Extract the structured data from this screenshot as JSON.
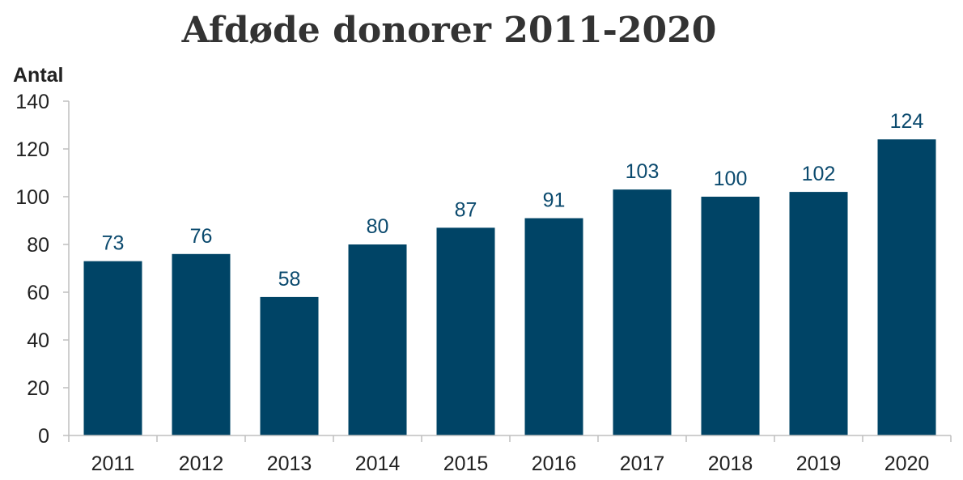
{
  "chart_data": {
    "type": "bar",
    "title": "Afdøde donorer 2011-2020",
    "xlabel": "",
    "ylabel": "Antal",
    "categories": [
      "2011",
      "2012",
      "2013",
      "2014",
      "2015",
      "2016",
      "2017",
      "2018",
      "2019",
      "2020"
    ],
    "values": [
      73,
      76,
      58,
      80,
      87,
      91,
      103,
      100,
      102,
      124
    ],
    "data_labels": [
      "73",
      "76",
      "58",
      "80",
      "87",
      "91",
      "103",
      "100",
      "102",
      "124"
    ],
    "ylim": [
      0,
      140
    ],
    "y_ticks": [
      0,
      20,
      40,
      60,
      80,
      100,
      120,
      140
    ],
    "y_tick_labels": [
      "0",
      "20",
      "40",
      "60",
      "80",
      "100",
      "120",
      "140"
    ],
    "grid": false,
    "legend": "none",
    "bar_color": "#004466",
    "label_color": "#0b4a6e",
    "axis_color": "#bfbfbf"
  }
}
